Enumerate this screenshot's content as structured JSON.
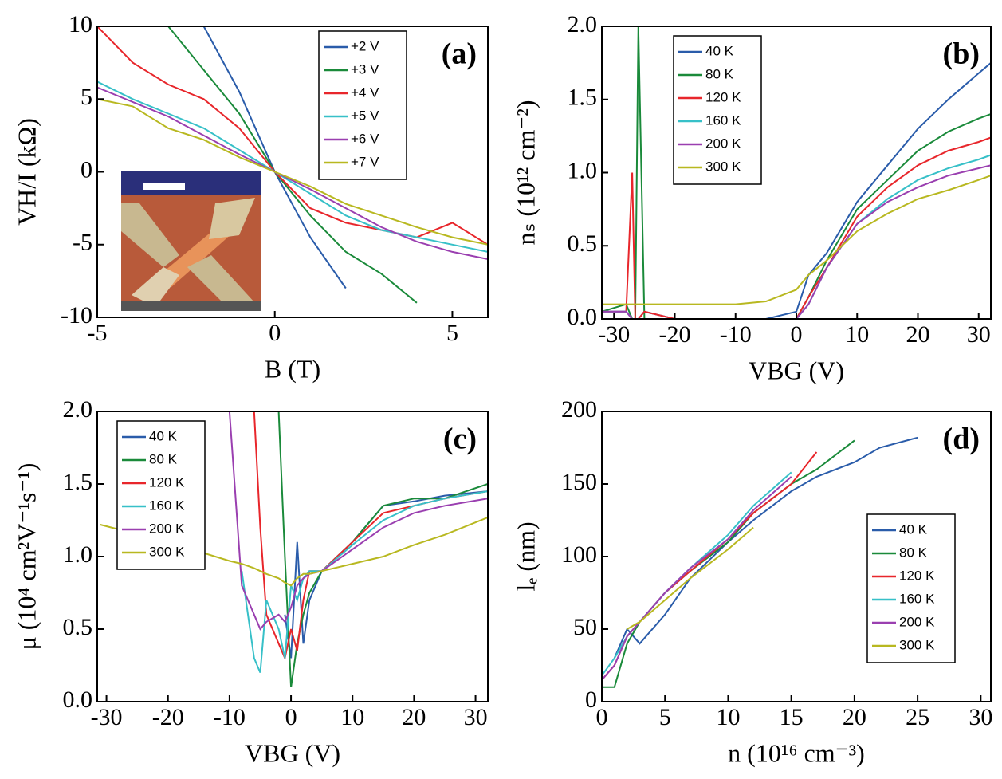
{
  "chart_data": [
    {
      "type": "line",
      "label": "(a)",
      "xlabel": "B (T)",
      "ylabel": "VH/I (kΩ)",
      "xlim": [
        -5,
        6
      ],
      "ylim": [
        -10,
        10
      ],
      "xticks": [
        -5,
        0,
        5
      ],
      "yticks": [
        -10,
        -5,
        0,
        5,
        10
      ],
      "legend": "upper right",
      "x": [
        -5,
        -4,
        -3,
        -2,
        -1,
        0,
        1,
        2,
        3,
        4,
        5,
        6
      ],
      "series": [
        {
          "name": "+2 V",
          "color": "#2a5caa",
          "values": [
            null,
            null,
            null,
            10,
            5.5,
            0,
            -4.5,
            -8,
            null,
            null,
            null,
            null
          ]
        },
        {
          "name": "+3 V",
          "color": "#1a8a3a",
          "values": [
            null,
            null,
            10,
            7,
            4,
            0,
            -3,
            -5.5,
            -7,
            -9,
            null,
            null
          ]
        },
        {
          "name": "+4 V",
          "color": "#e8262b",
          "values": [
            10,
            7.5,
            6,
            5,
            3,
            0,
            -2.5,
            -3.5,
            -4,
            -4.5,
            -3.5,
            -5
          ]
        },
        {
          "name": "+5 V",
          "color": "#37c0c8",
          "values": [
            6.2,
            5,
            4,
            3,
            1.5,
            0,
            -1.5,
            -3,
            -4,
            -4.5,
            -5,
            -5.5
          ]
        },
        {
          "name": "+6 V",
          "color": "#9a3fb0",
          "values": [
            5.8,
            4.8,
            3.8,
            2.5,
            1.2,
            0,
            -1.2,
            -2.5,
            -3.8,
            -4.8,
            -5.5,
            -6
          ]
        },
        {
          "name": "+7 V",
          "color": "#b8b820",
          "values": [
            5,
            4.5,
            3,
            2.2,
            1,
            0,
            -1,
            -2.2,
            -3,
            -3.8,
            -4.5,
            -5
          ]
        }
      ]
    },
    {
      "type": "line",
      "label": "(b)",
      "xlabel": "VBG (V)",
      "ylabel": "nₛ (10¹² cm⁻²)",
      "xlim": [
        -32,
        32
      ],
      "ylim": [
        0,
        2
      ],
      "xticks": [
        -30,
        -20,
        -10,
        0,
        10,
        20,
        30
      ],
      "yticks": [
        {
          "value": 0,
          "label": "0.0"
        },
        0.5,
        {
          "value": 1,
          "label": "1.0"
        },
        1.5,
        {
          "value": 2,
          "label": "2.0"
        }
      ],
      "legend": "upper left",
      "x": [
        -32,
        -28,
        -27,
        -26.5,
        -26,
        -25,
        -20,
        -10,
        -5,
        0,
        2,
        5,
        10,
        15,
        20,
        25,
        30,
        32
      ],
      "series": [
        {
          "name": "40 K",
          "color": "#2a5caa",
          "values": [
            0.05,
            0.05,
            0,
            0,
            0,
            0.05,
            0,
            0,
            0,
            0.05,
            0.3,
            0.45,
            0.8,
            1.05,
            1.3,
            1.5,
            1.68,
            1.75
          ]
        },
        {
          "name": "80 K",
          "color": "#1a8a3a",
          "values": [
            0.05,
            0.1,
            0,
            0,
            2,
            0,
            0,
            0,
            0,
            0,
            0.15,
            0.4,
            0.75,
            0.95,
            1.15,
            1.28,
            1.37,
            1.4
          ]
        },
        {
          "name": "120 K",
          "color": "#e8262b",
          "values": [
            0.05,
            0.05,
            1,
            0,
            0,
            0.05,
            0,
            0,
            0,
            0,
            0.15,
            0.35,
            0.7,
            0.9,
            1.05,
            1.15,
            1.21,
            1.24
          ]
        },
        {
          "name": "160 K",
          "color": "#37c0c8",
          "values": [
            0.05,
            0.05,
            0,
            0,
            0,
            0,
            0,
            0,
            0,
            0,
            0.1,
            0.35,
            0.65,
            0.82,
            0.95,
            1.03,
            1.09,
            1.12
          ]
        },
        {
          "name": "200 K",
          "color": "#9a3fb0",
          "values": [
            0.05,
            0.05,
            0,
            0,
            0,
            0,
            0,
            0,
            0,
            0,
            0.1,
            0.35,
            0.65,
            0.8,
            0.9,
            0.98,
            1.03,
            1.05
          ]
        },
        {
          "name": "300 K",
          "color": "#b8b820",
          "values": [
            0.1,
            0.1,
            0.1,
            0.1,
            0.1,
            0.1,
            0.1,
            0.1,
            0.12,
            0.2,
            0.3,
            0.4,
            0.6,
            0.72,
            0.82,
            0.88,
            0.95,
            0.98
          ]
        }
      ]
    },
    {
      "type": "line",
      "label": "(c)",
      "xlabel": "VBG (V)",
      "ylabel": "μ (10⁴ cm²V⁻¹s⁻¹)",
      "xlim": [
        -31.5,
        32
      ],
      "ylim": [
        0,
        2
      ],
      "xticks": [
        -30,
        -20,
        -10,
        0,
        10,
        20,
        30
      ],
      "yticks": [
        {
          "value": 0,
          "label": "0.0"
        },
        0.5,
        {
          "value": 1,
          "label": "1.0"
        },
        1.5,
        {
          "value": 2,
          "label": "2.0"
        }
      ],
      "legend": "upper left",
      "x": [
        -31,
        -20,
        -10,
        -8,
        -6,
        -5,
        -4,
        -2,
        -1,
        0,
        1,
        2,
        3,
        5,
        10,
        15,
        20,
        25,
        32
      ],
      "series": [
        {
          "name": "40 K",
          "color": "#2a5caa",
          "values": [
            null,
            0.02,
            null,
            null,
            null,
            null,
            null,
            null,
            0.6,
            0.3,
            1.1,
            0.4,
            0.7,
            0.9,
            1.1,
            1.35,
            1.38,
            1.42,
            1.45
          ]
        },
        {
          "name": "80 K",
          "color": "#1a8a3a",
          "values": [
            null,
            0.01,
            null,
            null,
            null,
            null,
            null,
            2,
            1,
            0.1,
            0.4,
            0.6,
            0.75,
            0.9,
            1.1,
            1.35,
            1.4,
            1.4,
            1.5
          ]
        },
        {
          "name": "120 K",
          "color": "#e8262b",
          "values": [
            null,
            null,
            null,
            null,
            2,
            1.2,
            0.6,
            0.4,
            0.3,
            0.5,
            0.35,
            0.7,
            0.9,
            0.9,
            1.1,
            1.3,
            1.35,
            1.4,
            1.45
          ]
        },
        {
          "name": "160 K",
          "color": "#37c0c8",
          "values": [
            null,
            null,
            null,
            0.9,
            0.3,
            0.2,
            0.7,
            0.5,
            0.3,
            0.8,
            0.7,
            0.85,
            0.9,
            0.9,
            1.08,
            1.25,
            1.35,
            1.4,
            1.45
          ]
        },
        {
          "name": "200 K",
          "color": "#9a3fb0",
          "values": [
            null,
            null,
            2,
            0.8,
            0.6,
            0.5,
            0.55,
            0.6,
            0.55,
            0.65,
            0.8,
            0.85,
            0.88,
            0.9,
            1.05,
            1.2,
            1.3,
            1.35,
            1.4
          ]
        },
        {
          "name": "300 K",
          "color": "#b8b820",
          "values": [
            1.22,
            1.1,
            0.97,
            0.95,
            0.92,
            0.9,
            0.88,
            0.85,
            0.82,
            0.8,
            0.85,
            0.88,
            0.88,
            0.9,
            0.95,
            1.0,
            1.08,
            1.15,
            1.27
          ]
        }
      ]
    },
    {
      "type": "line",
      "label": "(d)",
      "xlabel": "n (10¹⁶ cm⁻³)",
      "ylabel": "lₑ (nm)",
      "xlim": [
        0,
        30.8
      ],
      "ylim": [
        0,
        200
      ],
      "xticks": [
        0,
        5,
        10,
        15,
        20,
        25,
        30
      ],
      "yticks": [
        0,
        50,
        100,
        150,
        200
      ],
      "legend": "right",
      "x": [
        0,
        1,
        2,
        3,
        5,
        7,
        10,
        12,
        15,
        17,
        20,
        22,
        25
      ],
      "series": [
        {
          "name": "40 K",
          "color": "#2a5caa",
          "values": [
            null,
            30,
            50,
            40,
            60,
            85,
            110,
            125,
            145,
            155,
            165,
            175,
            182
          ]
        },
        {
          "name": "80 K",
          "color": "#1a8a3a",
          "values": [
            10,
            10,
            40,
            55,
            75,
            90,
            110,
            130,
            150,
            160,
            180,
            null,
            null
          ]
        },
        {
          "name": "120 K",
          "color": "#e8262b",
          "values": [
            15,
            25,
            45,
            55,
            75,
            90,
            112,
            130,
            150,
            172,
            null,
            null,
            null
          ]
        },
        {
          "name": "160 K",
          "color": "#37c0c8",
          "values": [
            18,
            30,
            45,
            55,
            75,
            92,
            115,
            135,
            158,
            null,
            null,
            null,
            null
          ]
        },
        {
          "name": "200 K",
          "color": "#9a3fb0",
          "values": [
            15,
            25,
            45,
            55,
            75,
            92,
            112,
            132,
            155,
            null,
            null,
            null,
            null
          ]
        },
        {
          "name": "300 K",
          "color": "#b8b820",
          "values": [
            null,
            null,
            50,
            55,
            70,
            85,
            105,
            120,
            null,
            null,
            null,
            null,
            null
          ]
        }
      ]
    }
  ]
}
